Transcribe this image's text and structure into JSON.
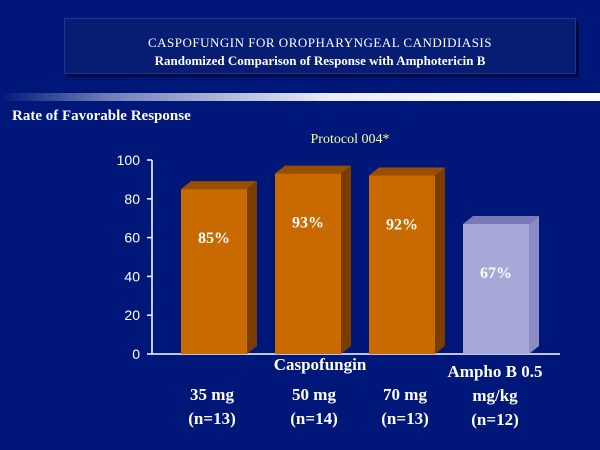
{
  "header": {
    "title": "CASPOFUNGIN FOR OROPHARYNGEAL CANDIDIASIS",
    "subtitle": "Randomized Comparison of Response with Amphotericin B"
  },
  "colors": {
    "background": "#00177a",
    "caspofungin_front": "#c86a00",
    "caspofungin_top": "#9a4f00",
    "caspofungin_side": "#7a3d00",
    "ampho_front": "#a8a8d8",
    "ampho_top": "#7a7ab8",
    "ampho_side": "#8c8cc4"
  },
  "chart_data": {
    "type": "bar",
    "title": "Protocol 004*",
    "ylabel": "Rate of Favorable Response",
    "ylim": [
      0,
      100
    ],
    "yticks": [
      "0",
      "20",
      "40",
      "60",
      "80",
      "100"
    ],
    "group_label": "Caspofungin",
    "categories": [
      {
        "line1": "35 mg",
        "line2": "(n=13)"
      },
      {
        "line1": "50 mg",
        "line2": "(n=14)"
      },
      {
        "line1": "70 mg",
        "line2": "(n=13)"
      },
      {
        "line1": "Ampho B 0.5 mg/kg",
        "line2": "(n=12)"
      }
    ],
    "values": [
      85,
      93,
      92,
      67
    ],
    "value_labels": [
      "85%",
      "93%",
      "92%",
      "67%"
    ],
    "series_group": [
      "caspofungin",
      "caspofungin",
      "caspofungin",
      "ampho"
    ]
  }
}
